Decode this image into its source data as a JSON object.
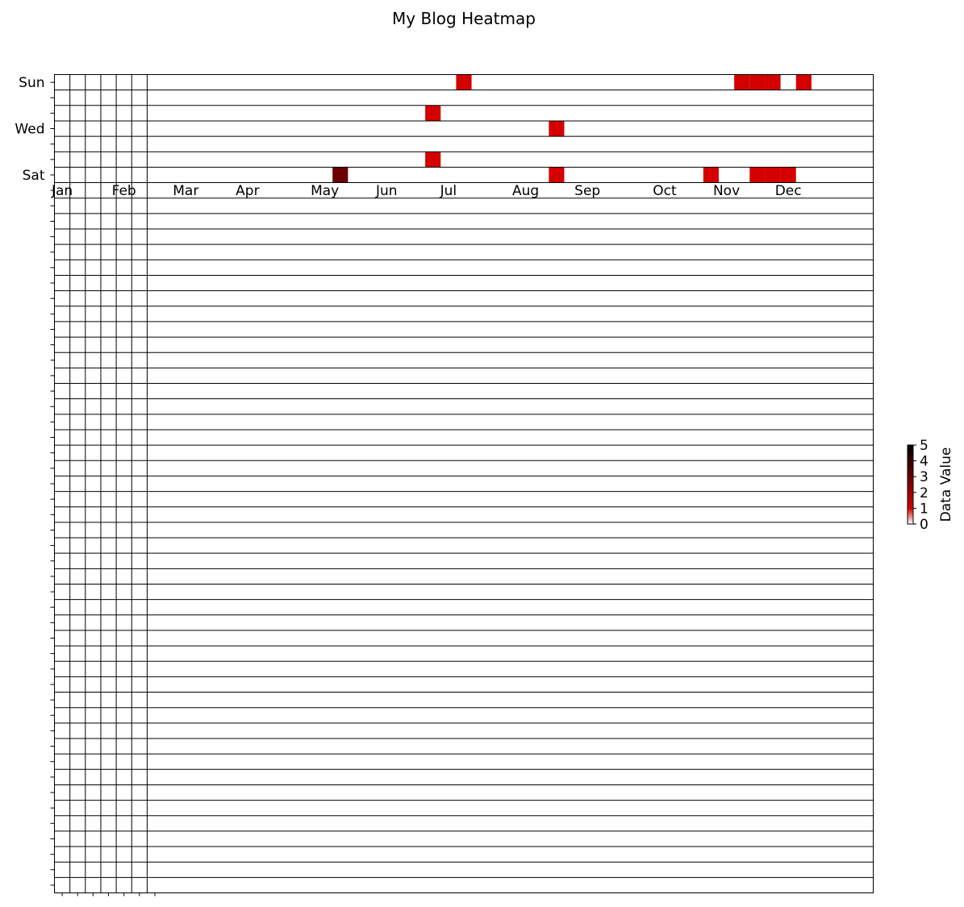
{
  "chart_data": {
    "type": "heatmap",
    "title": "My Blog Heatmap",
    "n_columns": 53,
    "n_rows": 53,
    "month_labels": [
      "Jan",
      "Feb",
      "Mar",
      "Apr",
      "May",
      "Jun",
      "Jul",
      "Aug",
      "Sep",
      "Oct",
      "Nov",
      "Dec"
    ],
    "month_week_index": [
      0,
      4,
      8,
      12,
      17,
      21,
      25,
      30,
      34,
      39,
      43,
      47
    ],
    "day_labels": [
      {
        "row": 0,
        "label": "Sun"
      },
      {
        "row": 3,
        "label": "Wed"
      },
      {
        "row": 6,
        "label": "Sat"
      }
    ],
    "cells": [
      {
        "week": 26,
        "day": 0,
        "value": 1
      },
      {
        "week": 44,
        "day": 0,
        "value": 1
      },
      {
        "week": 45,
        "day": 0,
        "value": 1
      },
      {
        "week": 46,
        "day": 0,
        "value": 1
      },
      {
        "week": 48,
        "day": 0,
        "value": 1
      },
      {
        "week": 24,
        "day": 2,
        "value": 1
      },
      {
        "week": 32,
        "day": 3,
        "value": 1
      },
      {
        "week": 24,
        "day": 5,
        "value": 1
      },
      {
        "week": 18,
        "day": 6,
        "value": 3
      },
      {
        "week": 32,
        "day": 6,
        "value": 1
      },
      {
        "week": 42,
        "day": 6,
        "value": 1
      },
      {
        "week": 45,
        "day": 6,
        "value": 1
      },
      {
        "week": 46,
        "day": 6,
        "value": 1
      },
      {
        "week": 47,
        "day": 6,
        "value": 1
      }
    ],
    "colorbar": {
      "label": "Data Value",
      "ticks": [
        0,
        1,
        2,
        3,
        4,
        5
      ],
      "vmin": 0,
      "vmax": 5,
      "colors": [
        "#ffffff",
        "#d40000",
        "#a00000",
        "#6b0000",
        "#3a0000",
        "#000000"
      ]
    },
    "grid": true
  }
}
